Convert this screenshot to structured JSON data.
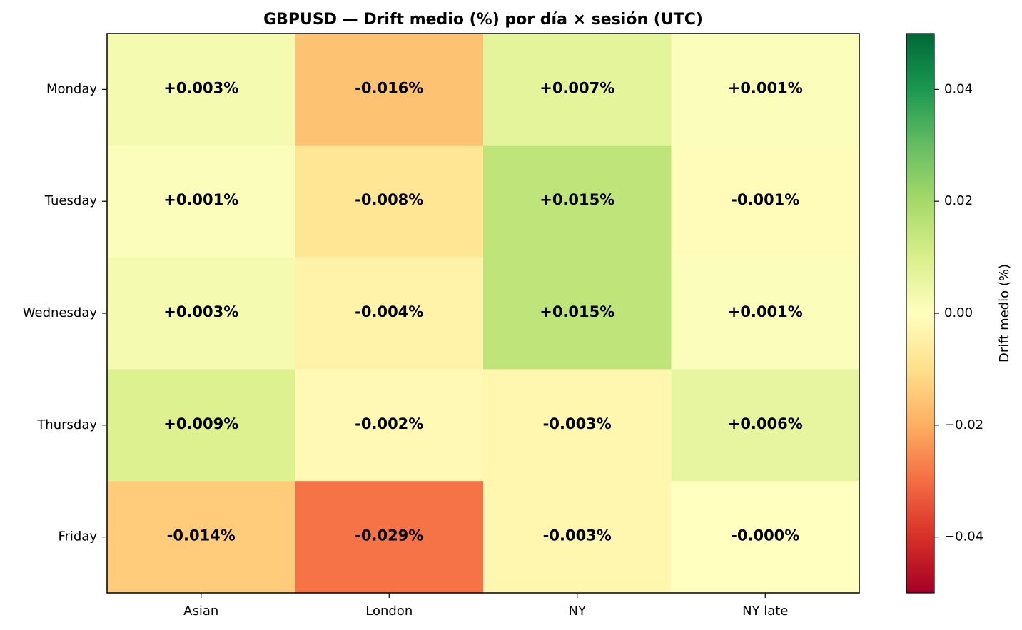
{
  "chart_data": {
    "type": "heatmap",
    "title": "GBPUSD — Drift medio (%) por día × sesión (UTC)",
    "rows": [
      "Monday",
      "Tuesday",
      "Wednesday",
      "Thursday",
      "Friday"
    ],
    "columns": [
      "Asian",
      "London",
      "NY",
      "NY late"
    ],
    "values": [
      [
        0.003,
        -0.016,
        0.007,
        0.001
      ],
      [
        0.001,
        -0.008,
        0.015,
        -0.001
      ],
      [
        0.003,
        -0.004,
        0.015,
        0.001
      ],
      [
        0.009,
        -0.002,
        -0.003,
        0.006
      ],
      [
        -0.014,
        -0.029,
        -0.003,
        -0.0
      ]
    ],
    "cell_labels": [
      [
        "+0.003%",
        "-0.016%",
        "+0.007%",
        "+0.001%"
      ],
      [
        "+0.001%",
        "-0.008%",
        "+0.015%",
        "-0.001%"
      ],
      [
        "+0.003%",
        "-0.004%",
        "+0.015%",
        "+0.001%"
      ],
      [
        "+0.009%",
        "-0.002%",
        "-0.003%",
        "+0.006%"
      ],
      [
        "-0.014%",
        "-0.029%",
        "-0.003%",
        "-0.000%"
      ]
    ],
    "colormap": "RdYlGn",
    "vmin": -0.05,
    "vmax": 0.05,
    "colorbar": {
      "label": "Drift medio (%)",
      "ticks": [
        0.04,
        0.02,
        0.0,
        -0.02,
        -0.04
      ],
      "tick_labels": [
        "0.04",
        "0.02",
        "0.00",
        "−0.02",
        "−0.04"
      ]
    }
  }
}
